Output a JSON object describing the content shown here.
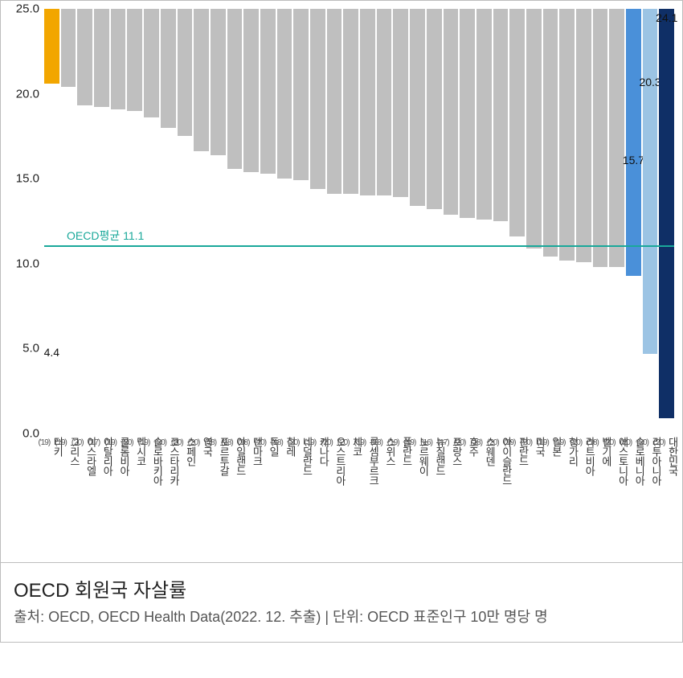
{
  "chart": {
    "type": "bar",
    "ylim": [
      0,
      25
    ],
    "yticks": [
      0.0,
      5.0,
      10.0,
      15.0,
      20.0,
      25.0
    ],
    "ytick_labels": [
      "0.0",
      "5.0",
      "10.0",
      "15.0",
      "20.0",
      "25.0"
    ],
    "average": {
      "value": 11.1,
      "label": "OECD평균 11.1",
      "color": "#1aa89a"
    },
    "default_bar_color": "#bfbfbf",
    "background_color": "#ffffff",
    "axis_font_size": 15,
    "value_label_font_size": 14,
    "category_font_size": 13,
    "bars": [
      {
        "country": "터키",
        "year": "('19)",
        "value": 4.4,
        "color": "#f2a600",
        "show_value": true
      },
      {
        "country": "그리스",
        "year": "('19)",
        "value": 4.6
      },
      {
        "country": "이스라엘",
        "year": "('20)",
        "value": 5.7
      },
      {
        "country": "이탈리아",
        "year": "('17)",
        "value": 5.8
      },
      {
        "country": "콜롬비아",
        "year": "('19)",
        "value": 5.9
      },
      {
        "country": "멕시코",
        "year": "('20)",
        "value": 6.0
      },
      {
        "country": "슬로바키아",
        "year": "('19)",
        "value": 6.4
      },
      {
        "country": "코스타리카",
        "year": "('20)",
        "value": 7.0
      },
      {
        "country": "스페인",
        "year": "('20)",
        "value": 7.5
      },
      {
        "country": "영국",
        "year": "('20)",
        "value": 8.4
      },
      {
        "country": "포르투갈",
        "year": "('18)",
        "value": 8.6
      },
      {
        "country": "아일랜드",
        "year": "('18)",
        "value": 9.4
      },
      {
        "country": "덴마크",
        "year": "('18)",
        "value": 9.6
      },
      {
        "country": "독일",
        "year": "('20)",
        "value": 9.7
      },
      {
        "country": "칠레",
        "year": "('18)",
        "value": 10.0
      },
      {
        "country": "네덜란드",
        "year": "('20)",
        "value": 10.1
      },
      {
        "country": "캐나다",
        "year": "('19)",
        "value": 10.6
      },
      {
        "country": "오스트리아",
        "year": "('20)",
        "value": 10.9
      },
      {
        "country": "체코",
        "year": "('20)",
        "value": 10.9
      },
      {
        "country": "룩셈부르크",
        "year": "('19)",
        "value": 11.0
      },
      {
        "country": "스위스",
        "year": "('18)",
        "value": 11.0
      },
      {
        "country": "폴란드",
        "year": "('19)",
        "value": 11.1
      },
      {
        "country": "노르웨이",
        "year": "('19)",
        "value": 11.6
      },
      {
        "country": "뉴질랜드",
        "year": "('16)",
        "value": 11.8
      },
      {
        "country": "프랑스",
        "year": "('17)",
        "value": 12.1
      },
      {
        "country": "호주",
        "year": "('20)",
        "value": 12.3
      },
      {
        "country": "스웨덴",
        "year": "('18)",
        "value": 12.4
      },
      {
        "country": "아이슬란드",
        "year": "('20)",
        "value": 12.5
      },
      {
        "country": "핀란드",
        "year": "('19)",
        "value": 13.4
      },
      {
        "country": "미국",
        "year": "('20)",
        "value": 14.1
      },
      {
        "country": "일본",
        "year": "('19)",
        "value": 14.6
      },
      {
        "country": "헝가리",
        "year": "('19)",
        "value": 14.8
      },
      {
        "country": "라트비아",
        "year": "('20)",
        "value": 14.9
      },
      {
        "country": "벨기에",
        "year": "('18)",
        "value": 15.2
      },
      {
        "country": "에스토니아",
        "year": "('20)",
        "value": 15.2
      },
      {
        "country": "슬로베니아",
        "year": "('20)",
        "value": 15.7,
        "color": "#4a90d9",
        "show_value": true
      },
      {
        "country": "리투아니아",
        "year": "('20)",
        "value": 20.3,
        "color": "#9cc4e4",
        "show_value": true
      },
      {
        "country": "대한민국",
        "year": "('20)",
        "value": 24.1,
        "color": "#0f2f66",
        "show_value": true
      }
    ]
  },
  "caption": {
    "title": "OECD 회원국 자살률",
    "subtitle": "출처: OECD, OECD Health Data(2022. 12. 추출) | 단위: OECD 표준인구 10만 명당 명"
  }
}
